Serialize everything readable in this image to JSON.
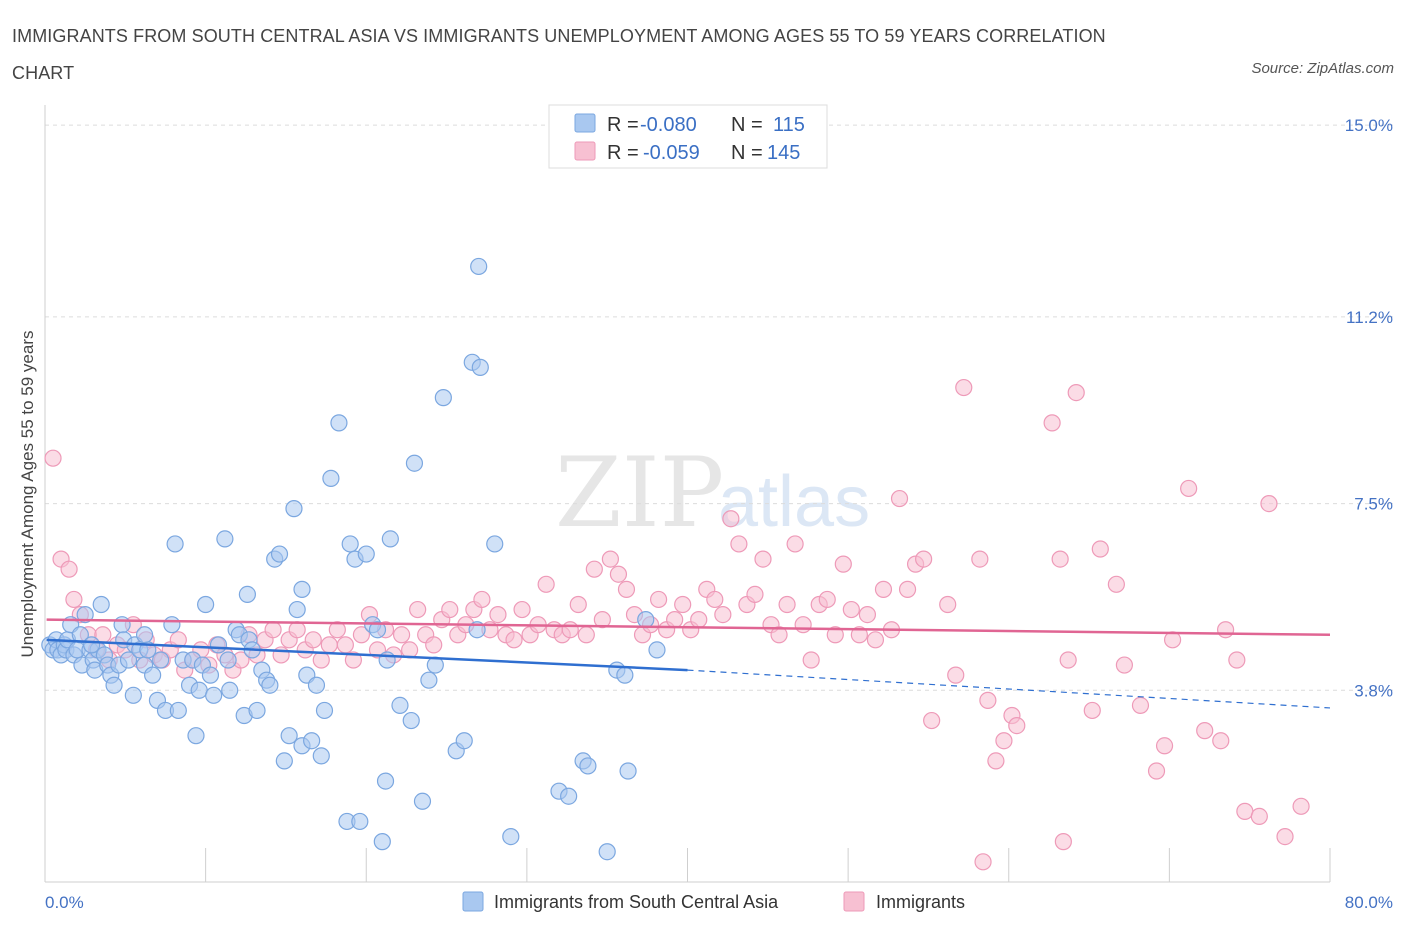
{
  "header": {
    "title": "IMMIGRANTS FROM SOUTH CENTRAL ASIA VS IMMIGRANTS UNEMPLOYMENT AMONG AGES 55 TO 59 YEARS CORRELATION CHART",
    "source": "Source: ZipAtlas.com"
  },
  "watermark": {
    "zip": "ZIP",
    "atlas": "atlas"
  },
  "legend_top": [
    {
      "r_label": "R =",
      "r_value": "-0.080",
      "n_label": "N =",
      "n_value": "115",
      "color": "#a9c8f0",
      "stroke": "#7ba7e0"
    },
    {
      "r_label": "R =",
      "r_value": "-0.059",
      "n_label": "N =",
      "n_value": "145",
      "color": "#f7c0d2",
      "stroke": "#ee9ab8"
    }
  ],
  "legend_bottom": [
    {
      "label": "Immigrants from South Central Asia",
      "color": "#a9c8f0",
      "stroke": "#7ba7e0"
    },
    {
      "label": "Immigrants",
      "color": "#f7c0d2",
      "stroke": "#ee9ab8"
    }
  ],
  "chart_data": {
    "type": "scatter",
    "title": "IMMIGRANTS FROM SOUTH CENTRAL ASIA VS IMMIGRANTS UNEMPLOYMENT AMONG AGES 55 TO 59 YEARS CORRELATION CHART",
    "xlabel": "",
    "ylabel": "Unemployment Among Ages 55 to 59 years",
    "xlim": [
      0,
      80
    ],
    "ylim": [
      0,
      15.4
    ],
    "x_tick_labels": [
      "0.0%",
      "80.0%"
    ],
    "y_ticks": [
      3.8,
      7.5,
      11.2,
      15.0
    ],
    "y_tick_labels": [
      "3.8%",
      "7.5%",
      "11.2%",
      "15.0%"
    ],
    "grid": true,
    "series": [
      {
        "name": "Immigrants from South Central Asia",
        "color": "#a9c8f0",
        "stroke": "#7ba7e0",
        "trend_color": "#2f6fd0",
        "trend": {
          "x0": 0.1,
          "y0": 4.8,
          "x1": 40,
          "y1": 4.2,
          "dash_to_x": 80,
          "dash_to_y": 3.45
        },
        "points": [
          [
            0.3,
            4.7
          ],
          [
            0.5,
            4.6
          ],
          [
            0.7,
            4.8
          ],
          [
            0.8,
            4.6
          ],
          [
            1.0,
            4.5
          ],
          [
            1.2,
            4.7
          ],
          [
            1.3,
            4.6
          ],
          [
            1.4,
            4.8
          ],
          [
            1.6,
            5.1
          ],
          [
            1.8,
            4.5
          ],
          [
            2.0,
            4.6
          ],
          [
            2.2,
            4.9
          ],
          [
            2.3,
            4.3
          ],
          [
            2.5,
            5.3
          ],
          [
            2.8,
            4.6
          ],
          [
            3.0,
            4.4
          ],
          [
            3.1,
            4.2
          ],
          [
            3.3,
            4.6
          ],
          [
            3.5,
            5.5
          ],
          [
            3.7,
            4.5
          ],
          [
            3.9,
            4.3
          ],
          [
            4.1,
            4.1
          ],
          [
            4.3,
            3.9
          ],
          [
            4.6,
            4.3
          ],
          [
            4.8,
            5.1
          ],
          [
            4.9,
            4.8
          ],
          [
            5.2,
            4.4
          ],
          [
            5.5,
            3.7
          ],
          [
            5.6,
            4.7
          ],
          [
            5.9,
            4.6
          ],
          [
            6.2,
            4.3
          ],
          [
            6.4,
            4.6
          ],
          [
            6.7,
            4.1
          ],
          [
            7.0,
            3.6
          ],
          [
            7.2,
            4.4
          ],
          [
            7.5,
            3.4
          ],
          [
            7.9,
            5.1
          ],
          [
            8.1,
            6.7
          ],
          [
            8.3,
            3.4
          ],
          [
            8.6,
            4.4
          ],
          [
            9.0,
            3.9
          ],
          [
            9.2,
            4.4
          ],
          [
            9.4,
            2.9
          ],
          [
            9.6,
            3.8
          ],
          [
            9.8,
            4.3
          ],
          [
            10.0,
            5.5
          ],
          [
            10.3,
            4.1
          ],
          [
            10.5,
            3.7
          ],
          [
            10.8,
            4.7
          ],
          [
            11.2,
            6.8
          ],
          [
            11.5,
            3.8
          ],
          [
            11.9,
            5.0
          ],
          [
            12.1,
            4.9
          ],
          [
            12.4,
            3.3
          ],
          [
            12.7,
            4.8
          ],
          [
            12.9,
            4.6
          ],
          [
            13.2,
            3.4
          ],
          [
            13.5,
            4.2
          ],
          [
            13.8,
            4.0
          ],
          [
            14.0,
            3.9
          ],
          [
            14.3,
            6.4
          ],
          [
            14.6,
            6.5
          ],
          [
            14.9,
            2.4
          ],
          [
            15.2,
            2.9
          ],
          [
            15.5,
            7.4
          ],
          [
            15.7,
            5.4
          ],
          [
            16.0,
            2.7
          ],
          [
            16.3,
            4.1
          ],
          [
            16.6,
            2.8
          ],
          [
            16.9,
            3.9
          ],
          [
            17.2,
            2.5
          ],
          [
            17.4,
            3.4
          ],
          [
            17.8,
            8.0
          ],
          [
            18.3,
            9.1
          ],
          [
            18.8,
            1.2
          ],
          [
            19.0,
            6.7
          ],
          [
            19.3,
            6.4
          ],
          [
            19.6,
            1.2
          ],
          [
            20.0,
            6.5
          ],
          [
            20.4,
            5.1
          ],
          [
            20.7,
            5.0
          ],
          [
            21.0,
            0.8
          ],
          [
            21.2,
            2.0
          ],
          [
            21.5,
            6.8
          ],
          [
            22.1,
            3.5
          ],
          [
            22.8,
            3.2
          ],
          [
            23.0,
            8.3
          ],
          [
            23.5,
            1.6
          ],
          [
            23.9,
            4.0
          ],
          [
            24.3,
            4.3
          ],
          [
            24.8,
            9.6
          ],
          [
            25.6,
            2.6
          ],
          [
            26.1,
            2.8
          ],
          [
            26.6,
            10.3
          ],
          [
            26.9,
            5.0
          ],
          [
            27.0,
            12.2
          ],
          [
            28.0,
            6.7
          ],
          [
            29.0,
            0.9
          ],
          [
            32.0,
            1.8
          ],
          [
            32.6,
            1.7
          ],
          [
            33.5,
            2.4
          ],
          [
            33.8,
            2.3
          ],
          [
            35.0,
            0.6
          ],
          [
            35.6,
            4.2
          ],
          [
            36.1,
            4.1
          ],
          [
            36.3,
            2.2
          ],
          [
            37.4,
            5.2
          ],
          [
            38.1,
            4.6
          ],
          [
            27.1,
            10.2
          ],
          [
            21.3,
            4.4
          ],
          [
            16.0,
            5.8
          ],
          [
            12.6,
            5.7
          ],
          [
            11.4,
            4.4
          ],
          [
            6.2,
            4.9
          ],
          [
            2.9,
            4.7
          ]
        ]
      },
      {
        "name": "Immigrants",
        "color": "#f7c0d2",
        "stroke": "#ee9ab8",
        "trend_color": "#e06593",
        "trend": {
          "x0": 0.1,
          "y0": 5.2,
          "x1": 80,
          "y1": 4.9
        },
        "points": [
          [
            0.5,
            8.4
          ],
          [
            1.0,
            6.4
          ],
          [
            1.5,
            6.2
          ],
          [
            1.8,
            5.6
          ],
          [
            2.2,
            5.3
          ],
          [
            2.7,
            4.9
          ],
          [
            3.2,
            4.6
          ],
          [
            3.6,
            4.9
          ],
          [
            4.0,
            4.4
          ],
          [
            4.5,
            4.7
          ],
          [
            5.0,
            4.6
          ],
          [
            5.5,
            5.1
          ],
          [
            5.9,
            4.4
          ],
          [
            6.3,
            4.8
          ],
          [
            6.8,
            4.5
          ],
          [
            7.3,
            4.4
          ],
          [
            7.8,
            4.6
          ],
          [
            8.3,
            4.8
          ],
          [
            8.7,
            4.2
          ],
          [
            9.2,
            4.4
          ],
          [
            9.7,
            4.6
          ],
          [
            10.2,
            4.3
          ],
          [
            10.7,
            4.7
          ],
          [
            11.2,
            4.5
          ],
          [
            11.7,
            4.2
          ],
          [
            12.2,
            4.4
          ],
          [
            12.7,
            4.9
          ],
          [
            13.2,
            4.5
          ],
          [
            13.7,
            4.8
          ],
          [
            14.2,
            5.0
          ],
          [
            14.7,
            4.5
          ],
          [
            15.2,
            4.8
          ],
          [
            15.7,
            5.0
          ],
          [
            16.2,
            4.6
          ],
          [
            16.7,
            4.8
          ],
          [
            17.2,
            4.4
          ],
          [
            17.7,
            4.7
          ],
          [
            18.2,
            5.0
          ],
          [
            18.7,
            4.7
          ],
          [
            19.2,
            4.4
          ],
          [
            19.7,
            4.9
          ],
          [
            20.2,
            5.3
          ],
          [
            20.7,
            4.6
          ],
          [
            21.2,
            5.0
          ],
          [
            21.7,
            4.5
          ],
          [
            22.2,
            4.9
          ],
          [
            22.7,
            4.6
          ],
          [
            23.2,
            5.4
          ],
          [
            23.7,
            4.9
          ],
          [
            24.2,
            4.7
          ],
          [
            24.7,
            5.2
          ],
          [
            25.2,
            5.4
          ],
          [
            25.7,
            4.9
          ],
          [
            26.2,
            5.1
          ],
          [
            26.7,
            5.4
          ],
          [
            27.2,
            5.6
          ],
          [
            27.7,
            5.0
          ],
          [
            28.2,
            5.3
          ],
          [
            28.7,
            4.9
          ],
          [
            29.2,
            4.8
          ],
          [
            29.7,
            5.4
          ],
          [
            30.2,
            4.9
          ],
          [
            30.7,
            5.1
          ],
          [
            31.2,
            5.9
          ],
          [
            31.7,
            5.0
          ],
          [
            32.2,
            4.9
          ],
          [
            32.7,
            5.0
          ],
          [
            33.2,
            5.5
          ],
          [
            33.7,
            4.9
          ],
          [
            34.2,
            6.2
          ],
          [
            34.7,
            5.2
          ],
          [
            35.2,
            6.4
          ],
          [
            35.7,
            6.1
          ],
          [
            36.2,
            5.8
          ],
          [
            36.7,
            5.3
          ],
          [
            37.2,
            4.9
          ],
          [
            37.7,
            5.1
          ],
          [
            38.2,
            5.6
          ],
          [
            38.7,
            5.0
          ],
          [
            39.2,
            5.2
          ],
          [
            39.7,
            5.5
          ],
          [
            40.2,
            5.0
          ],
          [
            40.7,
            5.2
          ],
          [
            41.2,
            5.8
          ],
          [
            41.7,
            5.6
          ],
          [
            42.2,
            5.3
          ],
          [
            42.7,
            7.2
          ],
          [
            43.2,
            6.7
          ],
          [
            43.7,
            5.5
          ],
          [
            44.2,
            5.7
          ],
          [
            44.7,
            6.4
          ],
          [
            45.2,
            5.1
          ],
          [
            45.7,
            4.9
          ],
          [
            46.2,
            5.5
          ],
          [
            46.7,
            6.7
          ],
          [
            47.2,
            5.1
          ],
          [
            47.7,
            4.4
          ],
          [
            48.2,
            5.5
          ],
          [
            48.7,
            5.6
          ],
          [
            49.2,
            4.9
          ],
          [
            49.7,
            6.3
          ],
          [
            50.2,
            5.4
          ],
          [
            50.7,
            4.9
          ],
          [
            51.2,
            5.3
          ],
          [
            51.7,
            4.8
          ],
          [
            52.2,
            5.8
          ],
          [
            52.7,
            5.0
          ],
          [
            53.2,
            7.6
          ],
          [
            53.7,
            5.8
          ],
          [
            54.2,
            6.3
          ],
          [
            54.7,
            6.4
          ],
          [
            55.2,
            3.2
          ],
          [
            56.2,
            5.5
          ],
          [
            56.7,
            4.1
          ],
          [
            57.2,
            9.8
          ],
          [
            58.2,
            6.4
          ],
          [
            58.7,
            3.6
          ],
          [
            59.2,
            2.4
          ],
          [
            59.7,
            2.8
          ],
          [
            60.2,
            3.3
          ],
          [
            62.7,
            9.1
          ],
          [
            63.2,
            6.4
          ],
          [
            63.7,
            4.4
          ],
          [
            64.2,
            9.7
          ],
          [
            65.2,
            3.4
          ],
          [
            65.7,
            6.6
          ],
          [
            66.7,
            5.9
          ],
          [
            67.2,
            4.3
          ],
          [
            68.2,
            3.5
          ],
          [
            69.2,
            2.2
          ],
          [
            69.7,
            2.7
          ],
          [
            70.2,
            4.8
          ],
          [
            71.2,
            7.8
          ],
          [
            72.2,
            3.0
          ],
          [
            73.2,
            2.8
          ],
          [
            74.2,
            4.4
          ],
          [
            74.7,
            1.4
          ],
          [
            76.2,
            7.5
          ],
          [
            77.2,
            0.9
          ],
          [
            78.2,
            1.5
          ],
          [
            63.4,
            0.8
          ],
          [
            58.4,
            0.4
          ],
          [
            60.5,
            3.1
          ],
          [
            75.6,
            1.3
          ],
          [
            73.5,
            5.0
          ]
        ]
      }
    ]
  }
}
